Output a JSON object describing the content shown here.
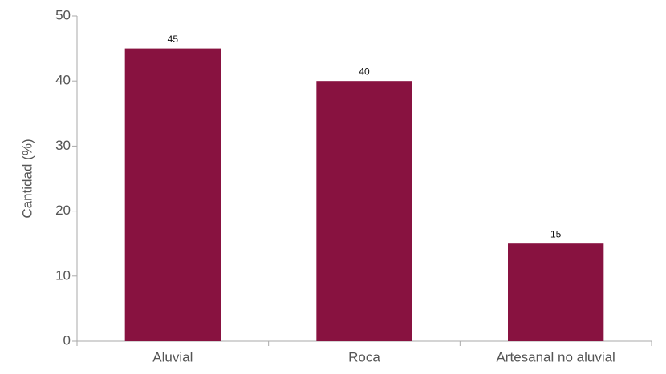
{
  "chart_data": {
    "type": "bar",
    "y_label": "Cantidad (%)",
    "categories": [
      "Aluvial",
      "Roca",
      "Artesanal no aluvial"
    ],
    "values": [
      45,
      40,
      15
    ],
    "color": "#881240",
    "ylim": [
      0,
      50
    ],
    "yticks": [
      0,
      10,
      20,
      30,
      40,
      50
    ],
    "grid": false
  }
}
